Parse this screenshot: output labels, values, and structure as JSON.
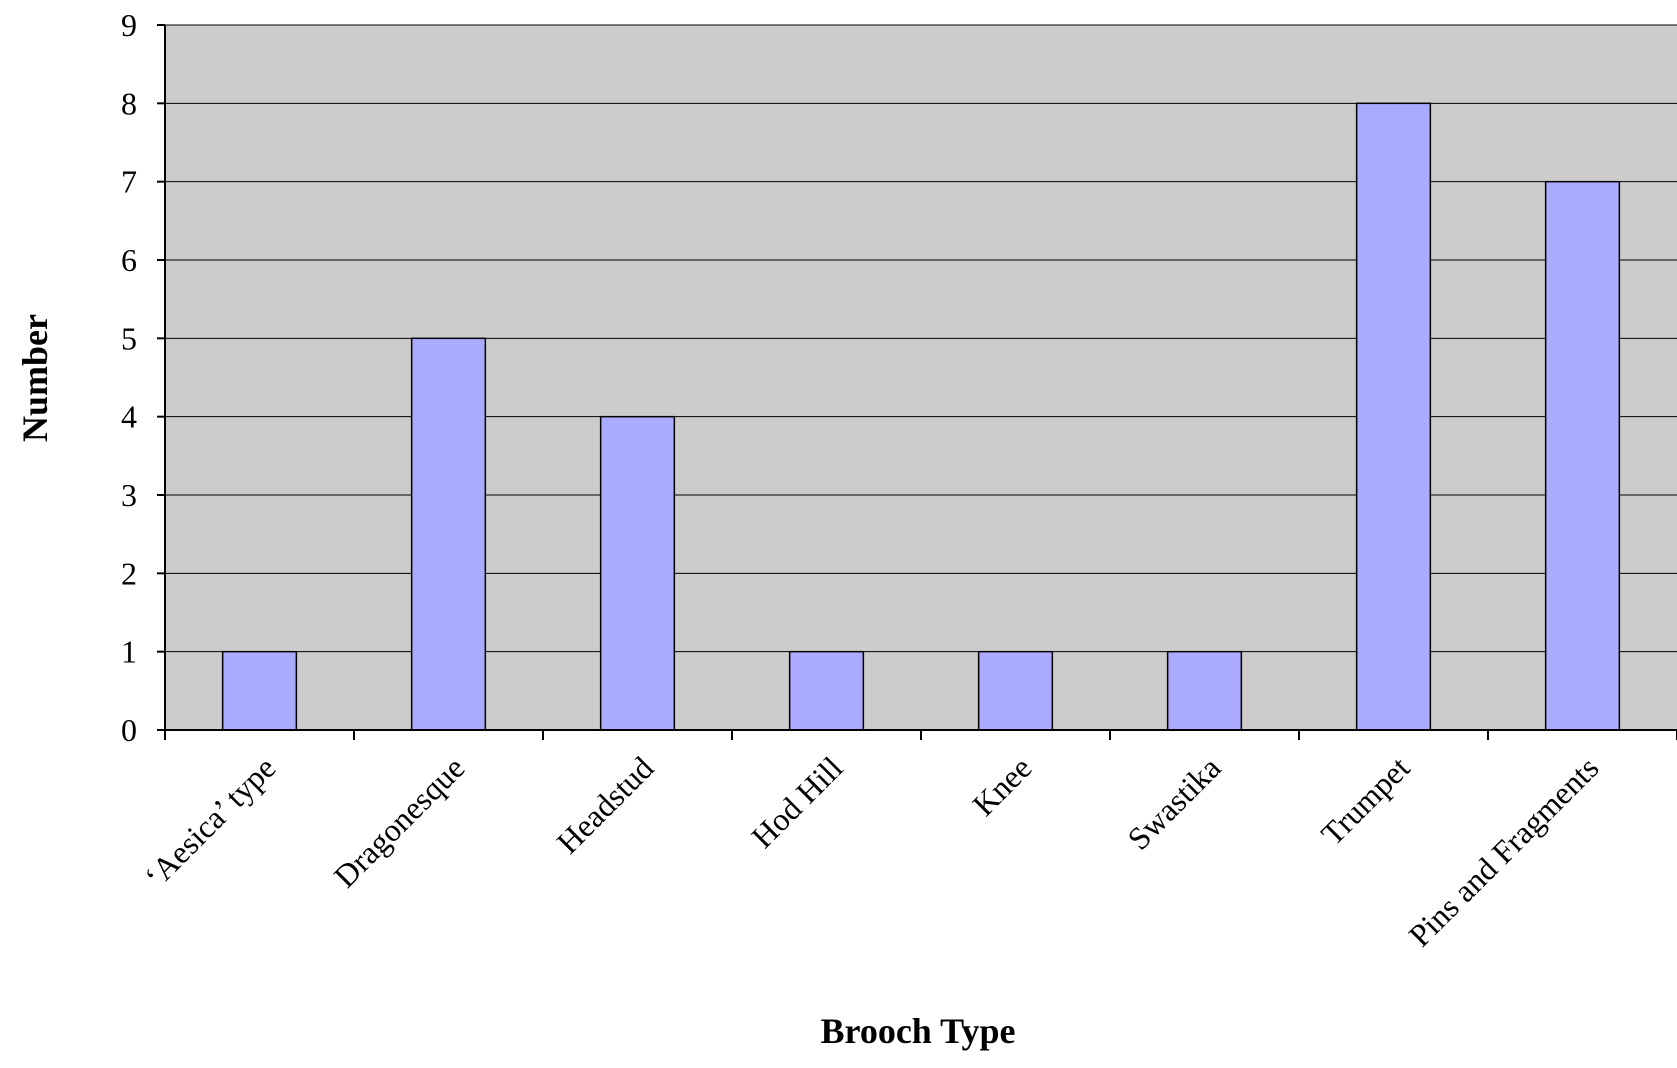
{
  "chart_data": {
    "type": "bar",
    "categories": [
      "‘Aesica’ type",
      "Dragonesque",
      "Headstud",
      "Hod Hill",
      "Knee",
      "Swastika",
      "Trumpet",
      "Pins and Fragments"
    ],
    "values": [
      1,
      5,
      4,
      1,
      1,
      1,
      8,
      7
    ],
    "title": "",
    "xlabel": "Brooch Type",
    "ylabel": "Number",
    "ylim": [
      0,
      9
    ],
    "yticks": [
      "0",
      "1",
      "2",
      "3",
      "4",
      "5",
      "6",
      "7",
      "8",
      "9"
    ],
    "grid": true,
    "legend": "none",
    "colors": {
      "plot_background": "#cccccc",
      "bar_fill": "#aaaaff",
      "bar_stroke": "#000000",
      "gridline": "#000000"
    }
  }
}
